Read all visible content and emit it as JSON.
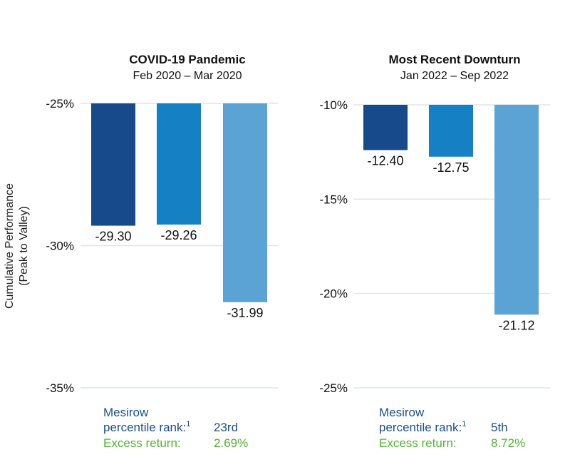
{
  "y_axis_label_line1": "Cumulative Performance",
  "y_axis_label_line2": "(Peak to Valley)",
  "colors": {
    "series1": "#174a8a",
    "series2": "#1680c4",
    "series3": "#5aa3d4",
    "rank_text": "#1a4f8a",
    "excess_text": "#4fb52d"
  },
  "chart_data": [
    {
      "type": "bar",
      "title": "COVID-19 Pandemic",
      "subtitle": "Feb 2020 – Mar 2020",
      "ylim": [
        -35,
        -25
      ],
      "yticks": [
        -25,
        -30,
        -35
      ],
      "ytick_labels": [
        "-25%",
        "-30%",
        "-35%"
      ],
      "values": [
        -29.3,
        -29.26,
        -31.99
      ],
      "value_labels": [
        "-29.30",
        "-29.26",
        "-31.99"
      ],
      "footnote": {
        "label_line1": "Mesirow",
        "label_line2": "percentile rank:",
        "superscript": "1",
        "rank": "23rd",
        "excess_label": "Excess return:",
        "excess_value": "2.69%"
      }
    },
    {
      "type": "bar",
      "title": "Most Recent Downturn",
      "subtitle": "Jan 2022 – Sep 2022",
      "ylim": [
        -25,
        -10
      ],
      "yticks": [
        -10,
        -15,
        -20,
        -25
      ],
      "ytick_labels": [
        "-10%",
        "-15%",
        "-20%",
        "-25%"
      ],
      "values": [
        -12.4,
        -12.75,
        -21.12
      ],
      "value_labels": [
        "-12.40",
        "-12.75",
        "-21.12"
      ],
      "footnote": {
        "label_line1": "Mesirow",
        "label_line2": "percentile rank:",
        "superscript": "1",
        "rank": "5th",
        "excess_label": "Excess return:",
        "excess_value": "8.72%"
      }
    }
  ]
}
